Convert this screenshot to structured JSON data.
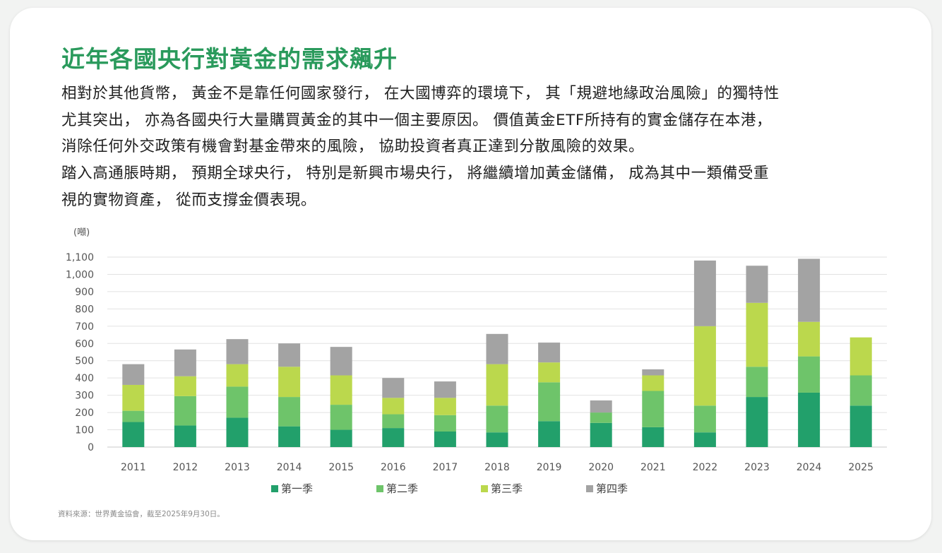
{
  "title": "近年各國央行對黃金的需求飆升",
  "paragraphs": [
    [
      "相對於其他貨幣， 黃金不是靠任何國家發行， 在大國博弈的環境下， 其「規避地緣政治風險」的獨特性",
      "尤其突出， 亦為各國央行大量購買黃金的其中一個主要原因。 價值黃金ETF所持有的實金儲存在本港，",
      "消除任何外交政策有機會對基金帶來的風險， 協助投資者真正達到分散風險的效果。"
    ],
    [
      "踏入高通脹時期， 預期全球央行， 特別是新興市場央行， 將繼續增加黃金儲備， 成為其中一類備受重",
      "視的實物資產， 從而支撐金價表現。"
    ]
  ],
  "chart_data": {
    "type": "bar",
    "stacked": true,
    "unit_label": "(噸)",
    "categories": [
      "2011",
      "2012",
      "2013",
      "2014",
      "2015",
      "2016",
      "2017",
      "2018",
      "2019",
      "2020",
      "2021",
      "2022",
      "2023",
      "2024",
      "2025"
    ],
    "series": [
      {
        "name": "第一季",
        "color": "#22a06b",
        "values": [
          145,
          125,
          170,
          120,
          100,
          110,
          90,
          85,
          150,
          140,
          115,
          85,
          290,
          315,
          240
        ]
      },
      {
        "name": "第二季",
        "color": "#6ec46a",
        "values": [
          65,
          170,
          180,
          170,
          145,
          80,
          95,
          155,
          225,
          60,
          210,
          155,
          175,
          210,
          175
        ]
      },
      {
        "name": "第三季",
        "color": "#bbd84d",
        "values": [
          150,
          115,
          130,
          175,
          170,
          95,
          100,
          240,
          115,
          0,
          90,
          460,
          370,
          200,
          220
        ]
      },
      {
        "name": "第四季",
        "color": "#a3a3a3",
        "values": [
          120,
          155,
          145,
          135,
          165,
          115,
          95,
          175,
          115,
          70,
          35,
          380,
          215,
          365,
          0
        ]
      }
    ],
    "yticks": [
      0,
      100,
      200,
      300,
      400,
      500,
      600,
      700,
      800,
      900,
      1000,
      1100
    ],
    "ytick_labels": [
      "0",
      "100",
      "200",
      "300",
      "400",
      "500",
      "600",
      "700",
      "800",
      "900",
      "1,000",
      "1,100"
    ],
    "ylim": [
      0,
      1100
    ],
    "grid": true,
    "legend_position": "bottom"
  },
  "source": "資料來源：世界黃金協會，截至2025年9月30日。"
}
